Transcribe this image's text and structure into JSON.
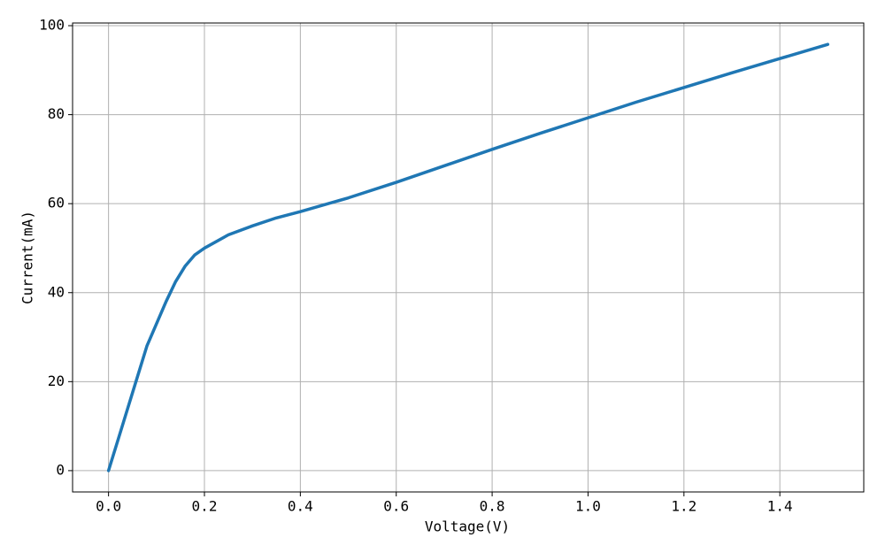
{
  "chart_data": {
    "type": "line",
    "x_label": "Voltage(V)",
    "y_label": "Current(mA)",
    "x": [
      0,
      0.02,
      0.04,
      0.06,
      0.08,
      0.1,
      0.12,
      0.14,
      0.16,
      0.18,
      0.2,
      0.25,
      0.3,
      0.35,
      0.4,
      0.5,
      0.6,
      0.7,
      0.8,
      0.9,
      1.0,
      1.1,
      1.2,
      1.3,
      1.4,
      1.5
    ],
    "series": [
      {
        "color": "#1f77b4",
        "values": [
          0,
          7,
          14,
          21,
          28,
          33,
          38,
          42.5,
          46,
          48.5,
          50,
          53,
          55,
          56.8,
          58.2,
          61.3,
          64.8,
          68.5,
          72.2,
          75.8,
          79.3,
          82.8,
          86.1,
          89.4,
          92.6,
          95.8
        ]
      }
    ],
    "xlim": [
      -0.075,
      1.575
    ],
    "xticks": [
      {
        "value": 0,
        "label": "0.0"
      },
      0.2,
      0.4,
      0.6,
      0.8,
      {
        "value": 1,
        "label": "1.0"
      },
      1.2,
      1.4
    ],
    "ylim": [
      -4.79,
      100.6
    ],
    "yticks": [
      0,
      20,
      40,
      60,
      80,
      100
    ],
    "grid": true
  }
}
